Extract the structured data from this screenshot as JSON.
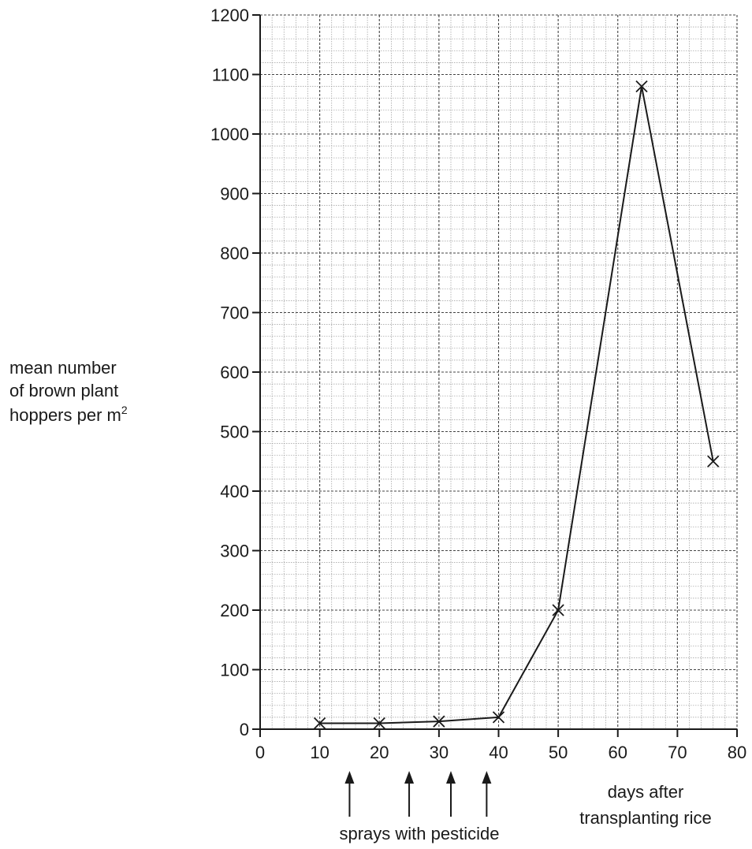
{
  "chart_data": {
    "type": "line",
    "title": "",
    "x": [
      10,
      20,
      30,
      40,
      50,
      64,
      76
    ],
    "series": [
      {
        "values": [
          10,
          10,
          13,
          20,
          200,
          1080,
          450
        ]
      }
    ],
    "xlim": [
      0,
      80
    ],
    "ylim": [
      0,
      1200
    ],
    "x_ticks": [
      0,
      10,
      20,
      30,
      40,
      50,
      60,
      70,
      80
    ],
    "y_ticks": [
      0,
      100,
      200,
      300,
      400,
      500,
      600,
      700,
      800,
      900,
      1000,
      1100,
      1200
    ],
    "xlabel_lines": [
      "days after",
      "transplanting rice"
    ],
    "ylabel_lines": [
      "mean number",
      "of brown plant",
      "hoppers per m"
    ],
    "ylabel_superscript": "2",
    "marker": "x",
    "grid": true,
    "annotation": {
      "label": "sprays with pesticide",
      "arrow_x": [
        15,
        25,
        32,
        38
      ]
    }
  }
}
